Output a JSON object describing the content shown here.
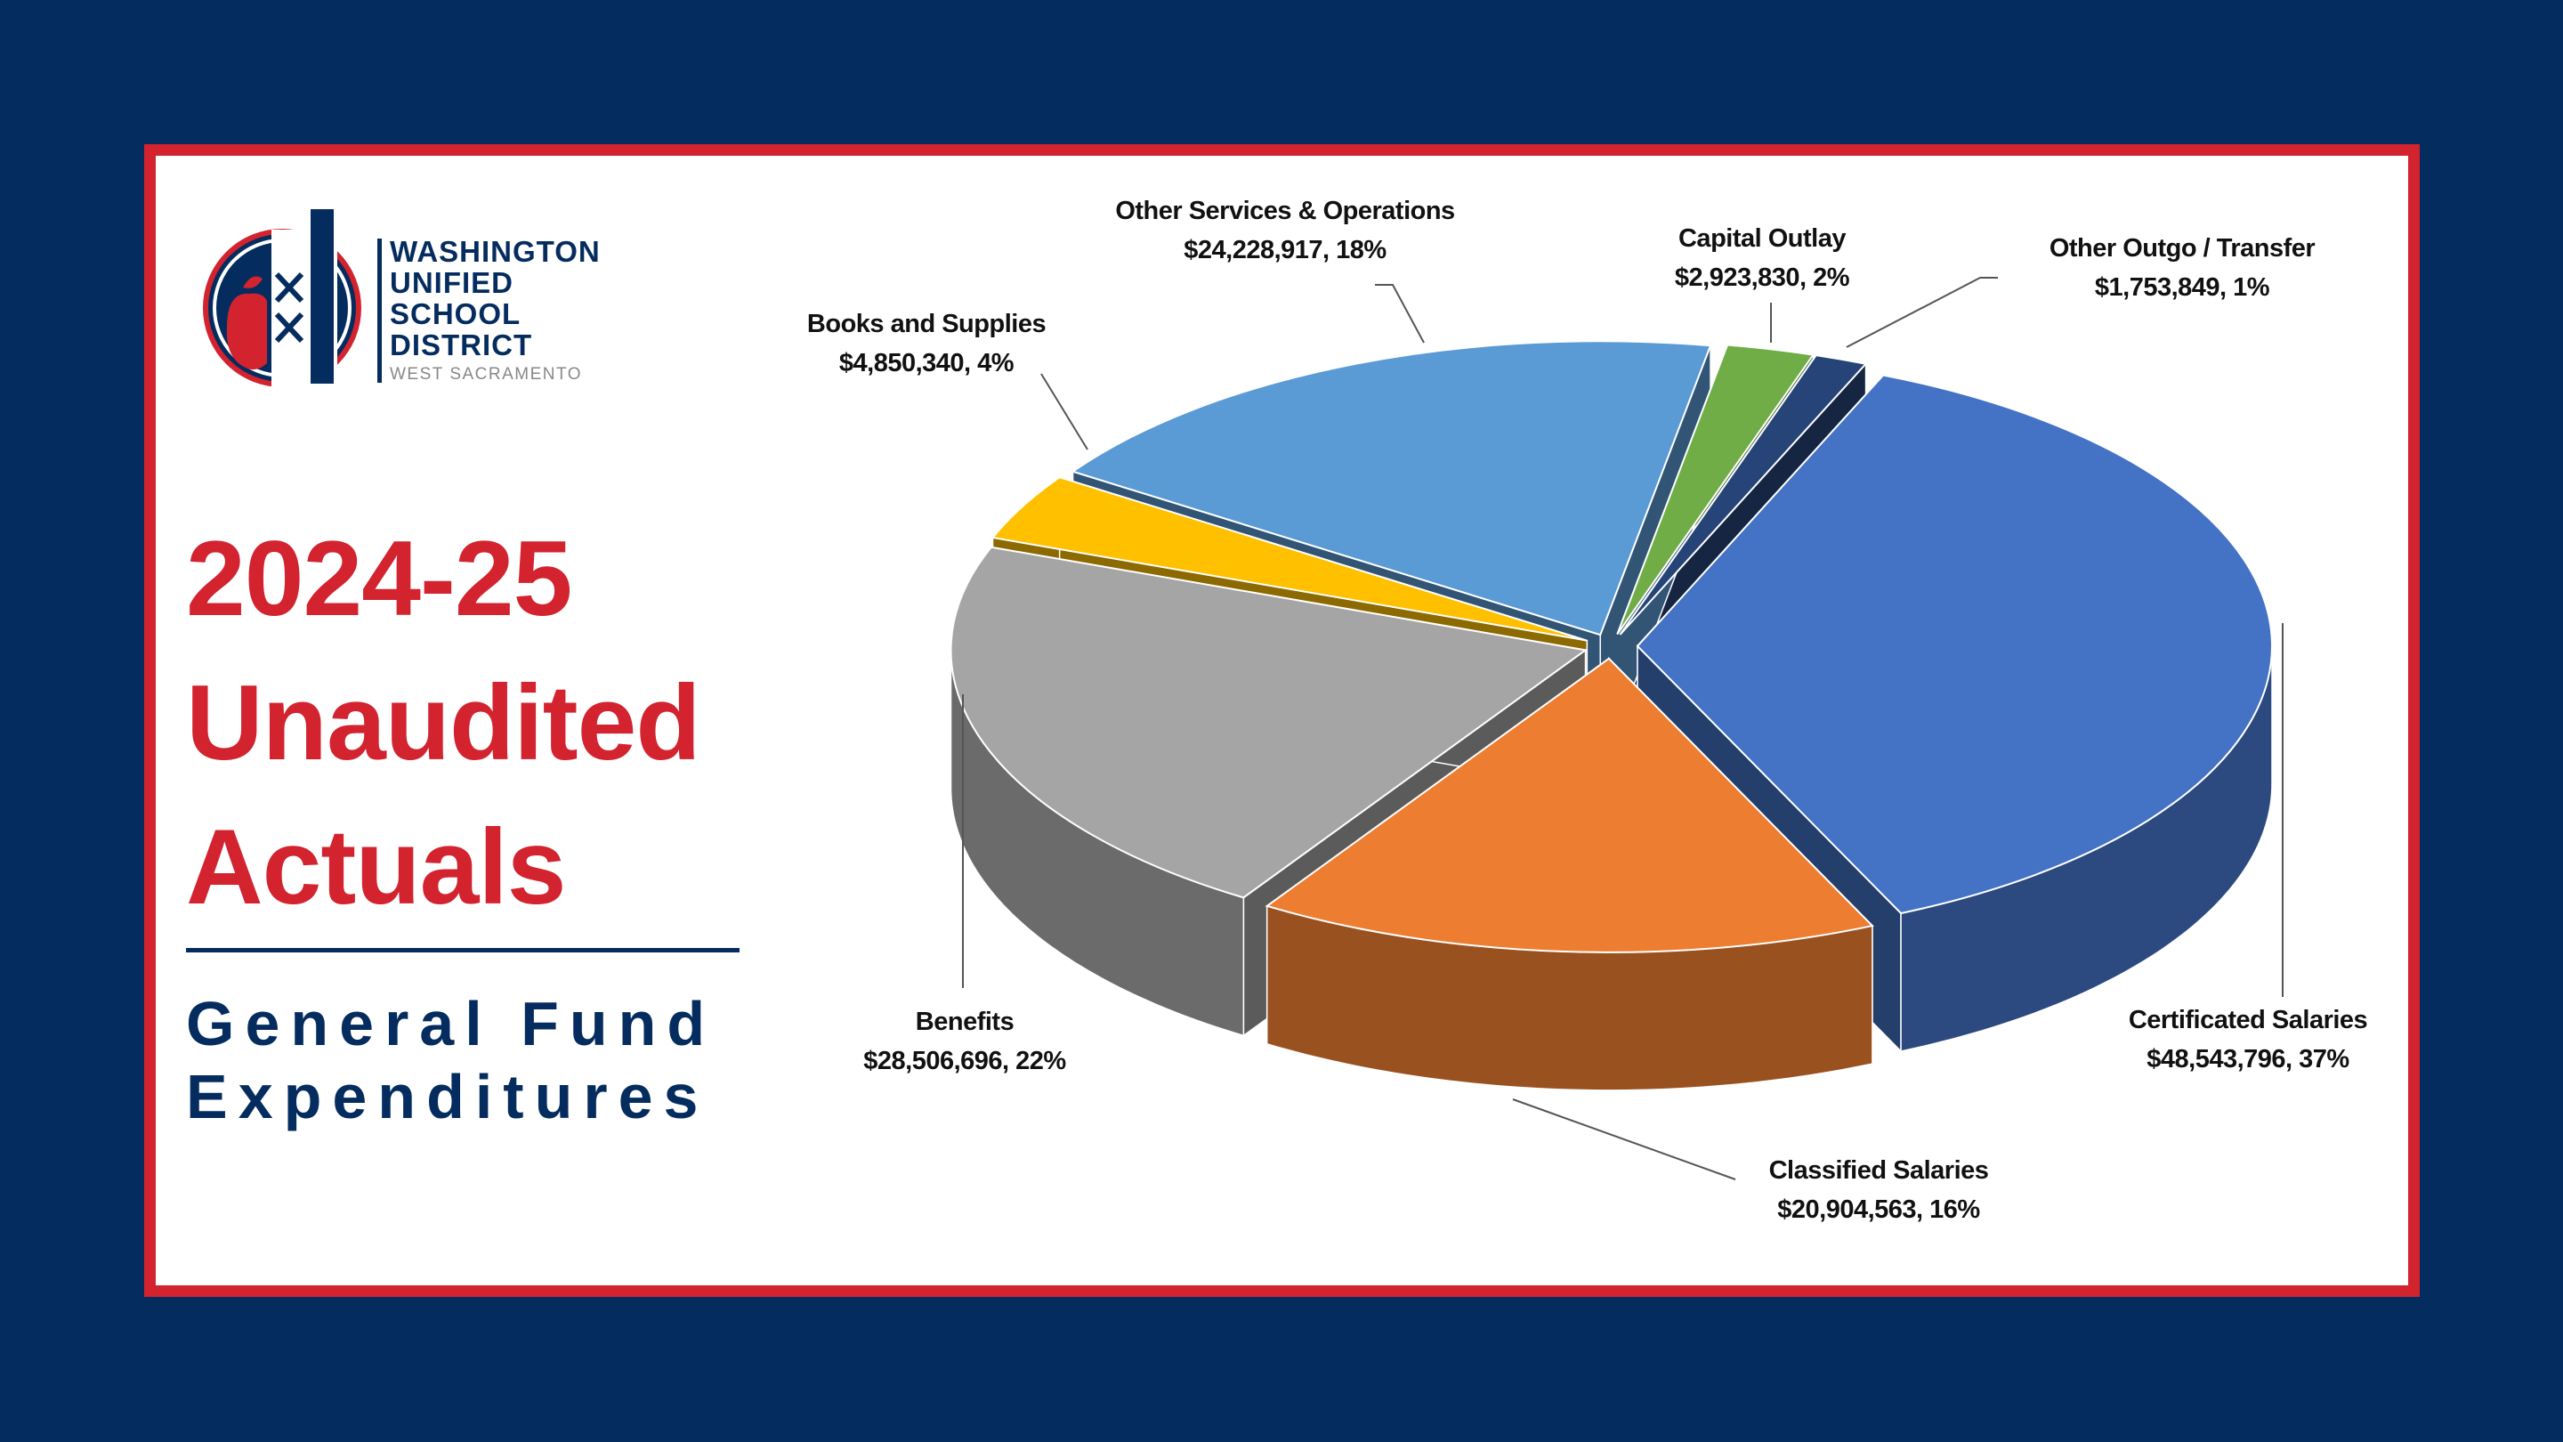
{
  "logo": {
    "lines": [
      "WASHINGTON",
      "UNIFIED",
      "SCHOOL",
      "DISTRICT"
    ],
    "tagline": "WEST SACRAMENTO"
  },
  "heading": {
    "lines": [
      "2024-25",
      "Unaudited",
      "Actuals"
    ],
    "subtitle_lines": [
      "General Fund",
      "Expenditures"
    ]
  },
  "colors": {
    "background": "#052c5e",
    "frame": "#d2232f",
    "title": "#d2232f",
    "subtitle": "#052c5e"
  },
  "chart_data": {
    "type": "pie",
    "style": "3d-exploded",
    "start": "Capital Outlay near 12 o'clock, clockwise",
    "slices": [
      {
        "name": "Capital Outlay",
        "value": 2923830,
        "percent": 2,
        "value_label": "$2,923,830, 2%",
        "color": "#70ad47"
      },
      {
        "name": "Other Outgo / Transfer",
        "value": 1753849,
        "percent": 1,
        "value_label": "$1,753,849, 1%",
        "color": "#264478"
      },
      {
        "name": "Certificated Salaries",
        "value": 48543796,
        "percent": 37,
        "value_label": "$48,543,796, 37%",
        "color": "#4472c4"
      },
      {
        "name": "Classified Salaries",
        "value": 20904563,
        "percent": 16,
        "value_label": "$20,904,563, 16%",
        "color": "#ed7d31"
      },
      {
        "name": "Benefits",
        "value": 28506696,
        "percent": 22,
        "value_label": "$28,506,696, 22%",
        "color": "#a5a5a5"
      },
      {
        "name": "Books and Supplies",
        "value": 4850340,
        "percent": 4,
        "value_label": "$4,850,340, 4%",
        "color": "#ffc000"
      },
      {
        "name": "Other Services & Operations",
        "value": 24228917,
        "percent": 18,
        "value_label": "$24,228,917, 18%",
        "color": "#5b9bd5"
      }
    ]
  }
}
